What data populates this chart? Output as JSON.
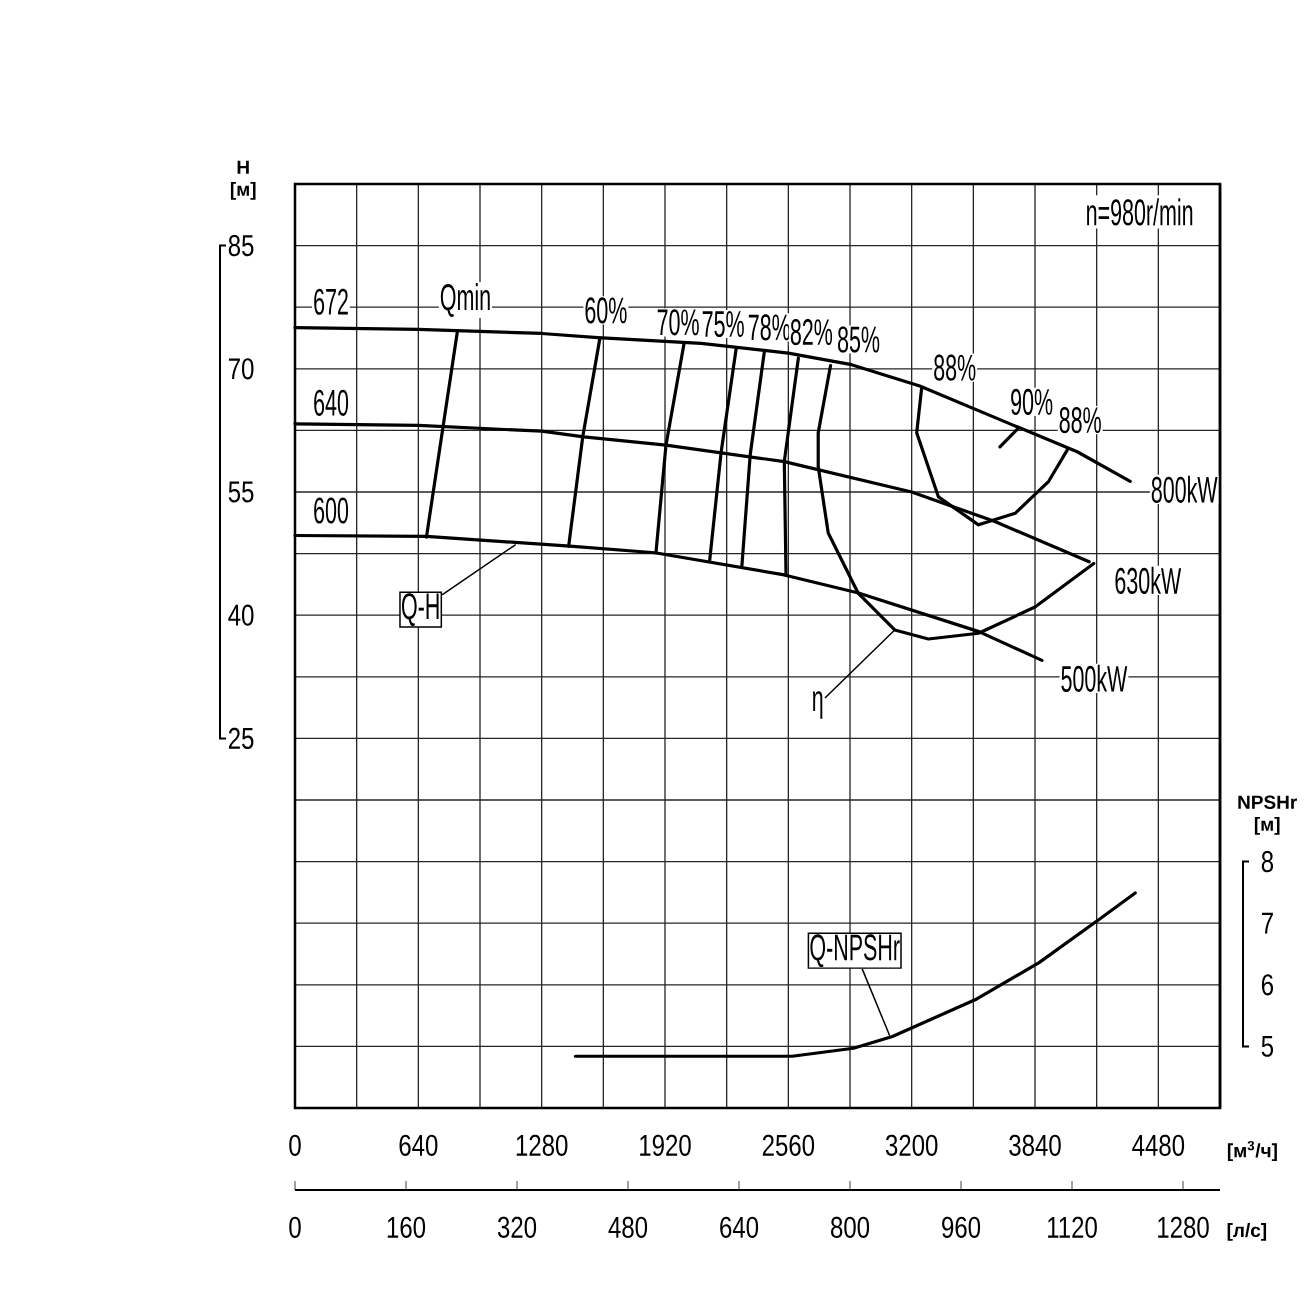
{
  "chart_data": {
    "type": "line",
    "xlabel": "[м$^{3}$/ч]",
    "ylabel": "H [м]",
    "y2label": "NPSHr [м]",
    "x2label": "[л/с]",
    "xlim": [
      0,
      4800
    ],
    "ylim": [
      -20,
      92.5
    ],
    "y2lim": [
      4,
      19
    ],
    "x2lim": [
      0,
      1333.33
    ],
    "xticks": [
      0,
      {
        "value": 320,
        "label": null
      },
      640,
      {
        "value": 960,
        "label": null
      },
      1280,
      {
        "value": 1600,
        "label": null
      },
      1920,
      {
        "value": 2240,
        "label": null
      },
      2560,
      {
        "value": 2880,
        "label": null
      },
      3200,
      {
        "value": 3520,
        "label": null
      },
      3840,
      {
        "value": 4160,
        "label": null
      },
      4480
    ],
    "yticks": [
      {
        "value": -12.5,
        "label": null
      },
      {
        "value": -5,
        "label": null
      },
      {
        "value": 2.5,
        "label": null
      },
      {
        "value": 10,
        "label": null
      },
      {
        "value": 17.5,
        "label": null
      },
      25,
      {
        "value": 32.5,
        "label": null
      },
      40,
      {
        "value": 47.5,
        "label": null
      },
      55,
      {
        "value": 62.5,
        "label": null
      },
      70,
      {
        "value": 77.5,
        "label": null
      },
      85
    ],
    "y2ticks": [
      5,
      6,
      7,
      8
    ],
    "x2ticks": [
      0,
      160,
      320,
      480,
      640,
      800,
      960,
      1120,
      1280
    ],
    "grid": true,
    "series": [
      {
        "color": "#000000",
        "x": [
          0,
          640,
          1280,
          1571,
          2107,
          2560,
          2888,
          3242,
          3720,
          4059,
          4334
        ],
        "values": [
          75.0,
          74.8,
          74.3,
          73.8,
          73.1,
          71.9,
          70.5,
          67.9,
          63.2,
          59.9,
          56.3
        ]
      },
      {
        "color": "#000000",
        "x": [
          0,
          640,
          1280,
          1499,
          1925,
          2539,
          3200,
          3632,
          4121
        ],
        "values": [
          63.3,
          63.1,
          62.4,
          61.7,
          60.7,
          58.7,
          55.0,
          51.4,
          46.5
        ]
      },
      {
        "color": "#000000",
        "x": [
          0,
          682,
          1426,
          1868,
          2539,
          2924,
          3549,
          3876
        ],
        "values": [
          49.7,
          49.6,
          48.4,
          47.6,
          44.9,
          42.7,
          38.0,
          34.5
        ]
      },
      {
        "color": "#000000",
        "x": [
          843,
          682
        ],
        "values": [
          74.6,
          49.5
        ]
      },
      {
        "color": "#000000",
        "x": [
          1582,
          1493,
          1420
        ],
        "values": [
          73.7,
          61.7,
          48.4
        ]
      },
      {
        "color": "#000000",
        "x": [
          2019,
          1925,
          1873
        ],
        "values": [
          73.1,
          60.7,
          47.6
        ]
      },
      {
        "color": "#000000",
        "x": [
          2289,
          2211,
          2152
        ],
        "values": [
          72.4,
          59.8,
          46.7
        ]
      },
      {
        "color": "#000000",
        "x": [
          2435,
          2362,
          2319
        ],
        "values": [
          72.0,
          59.5,
          46.0
        ]
      },
      {
        "color": "#000000",
        "x": [
          2612,
          2539,
          2548
        ],
        "values": [
          71.3,
          58.7,
          44.9
        ]
      },
      {
        "color": "#000000",
        "x": [
          2779,
          2715,
          2715,
          2767,
          2922,
          3112,
          3287,
          3547,
          3840,
          4145
        ],
        "values": [
          70.4,
          62.2,
          58.1,
          50.0,
          42.7,
          38.2,
          37.1,
          37.8,
          41.0,
          46.3
        ]
      },
      {
        "color": "#000000",
        "x": [
          3252,
          3226,
          3339,
          3547,
          3737,
          3911,
          4007
        ],
        "values": [
          67.7,
          62.2,
          54.4,
          51.0,
          52.4,
          56.3,
          60.1
        ]
      },
      {
        "color": "#000000",
        "x": [
          3658,
          3755
        ],
        "values": [
          60.5,
          62.8
        ]
      },
      {
        "color": "#000000",
        "axis": "y2",
        "x": [
          1455,
          1977,
          2580,
          2898,
          3100,
          3538,
          3861,
          4181,
          4360
        ],
        "values": [
          4.84,
          4.84,
          4.84,
          4.97,
          5.16,
          5.77,
          6.36,
          7.08,
          7.49
        ]
      }
    ],
    "annotations": [
      "n=980r/min",
      {
        "text": "672",
        "x": 0,
        "y": 75.0
      },
      {
        "text": "640",
        "x": 0,
        "y": 63.3
      },
      {
        "text": "600",
        "x": 0,
        "y": 49.7
      },
      {
        "text": "Qmin",
        "x": 843,
        "y": 74.6
      },
      {
        "text": "60%",
        "x": 1582,
        "y": 73.7
      },
      {
        "text": "70%",
        "x": 2019,
        "y": 73.1
      },
      {
        "text": "75%",
        "x": 2289,
        "y": 72.4
      },
      {
        "text": "78%",
        "x": 2435,
        "y": 72.0
      },
      {
        "text": "82%",
        "x": 2612,
        "y": 71.3
      },
      {
        "text": "85%",
        "x": 2779,
        "y": 70.4
      },
      {
        "text": "88%",
        "x": 3252,
        "y": 67.7
      },
      {
        "text": "90%",
        "x": 3755,
        "y": 62.8
      },
      {
        "text": "88%",
        "x": 4007,
        "y": 60.1
      },
      {
        "text": "800kW",
        "x": 4334,
        "y": 56.3
      },
      {
        "text": "630kW",
        "x": 4145,
        "y": 46.3
      },
      {
        "text": "500kW",
        "x": 3876,
        "y": 34.5
      },
      {
        "text": "Q-H",
        "x": 1145,
        "y": 48.6
      },
      {
        "text": "η",
        "x": 3112,
        "y": 38.2
      },
      {
        "text": "Q-NPSHr",
        "x": 3086,
        "y": -11.2
      }
    ]
  }
}
